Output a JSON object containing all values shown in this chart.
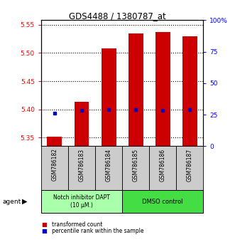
{
  "title": "GDS4488 / 1380787_at",
  "samples": [
    "GSM786182",
    "GSM786183",
    "GSM786184",
    "GSM786185",
    "GSM786186",
    "GSM786187"
  ],
  "transformed_count": [
    5.352,
    5.413,
    5.508,
    5.535,
    5.537,
    5.53
  ],
  "percentile_values": [
    5.393,
    5.398,
    5.4,
    5.4,
    5.399,
    5.4
  ],
  "bar_bottom": 5.335,
  "ylim": [
    5.335,
    5.558
  ],
  "yticks_left": [
    5.35,
    5.4,
    5.45,
    5.5,
    5.55
  ],
  "yticks_right_pct": [
    0,
    25,
    50,
    75,
    100
  ],
  "bar_color": "#cc0000",
  "dot_color": "#0000cc",
  "group1_color": "#aaffaa",
  "group2_color": "#44dd44",
  "group1_label": "Notch inhibitor DAPT\n(10 μM.)",
  "group2_label": "DMSO control",
  "agent_label": "agent",
  "legend1": "transformed count",
  "legend2": "percentile rank within the sample",
  "bar_width": 0.55,
  "label_bg_color": "#cccccc"
}
